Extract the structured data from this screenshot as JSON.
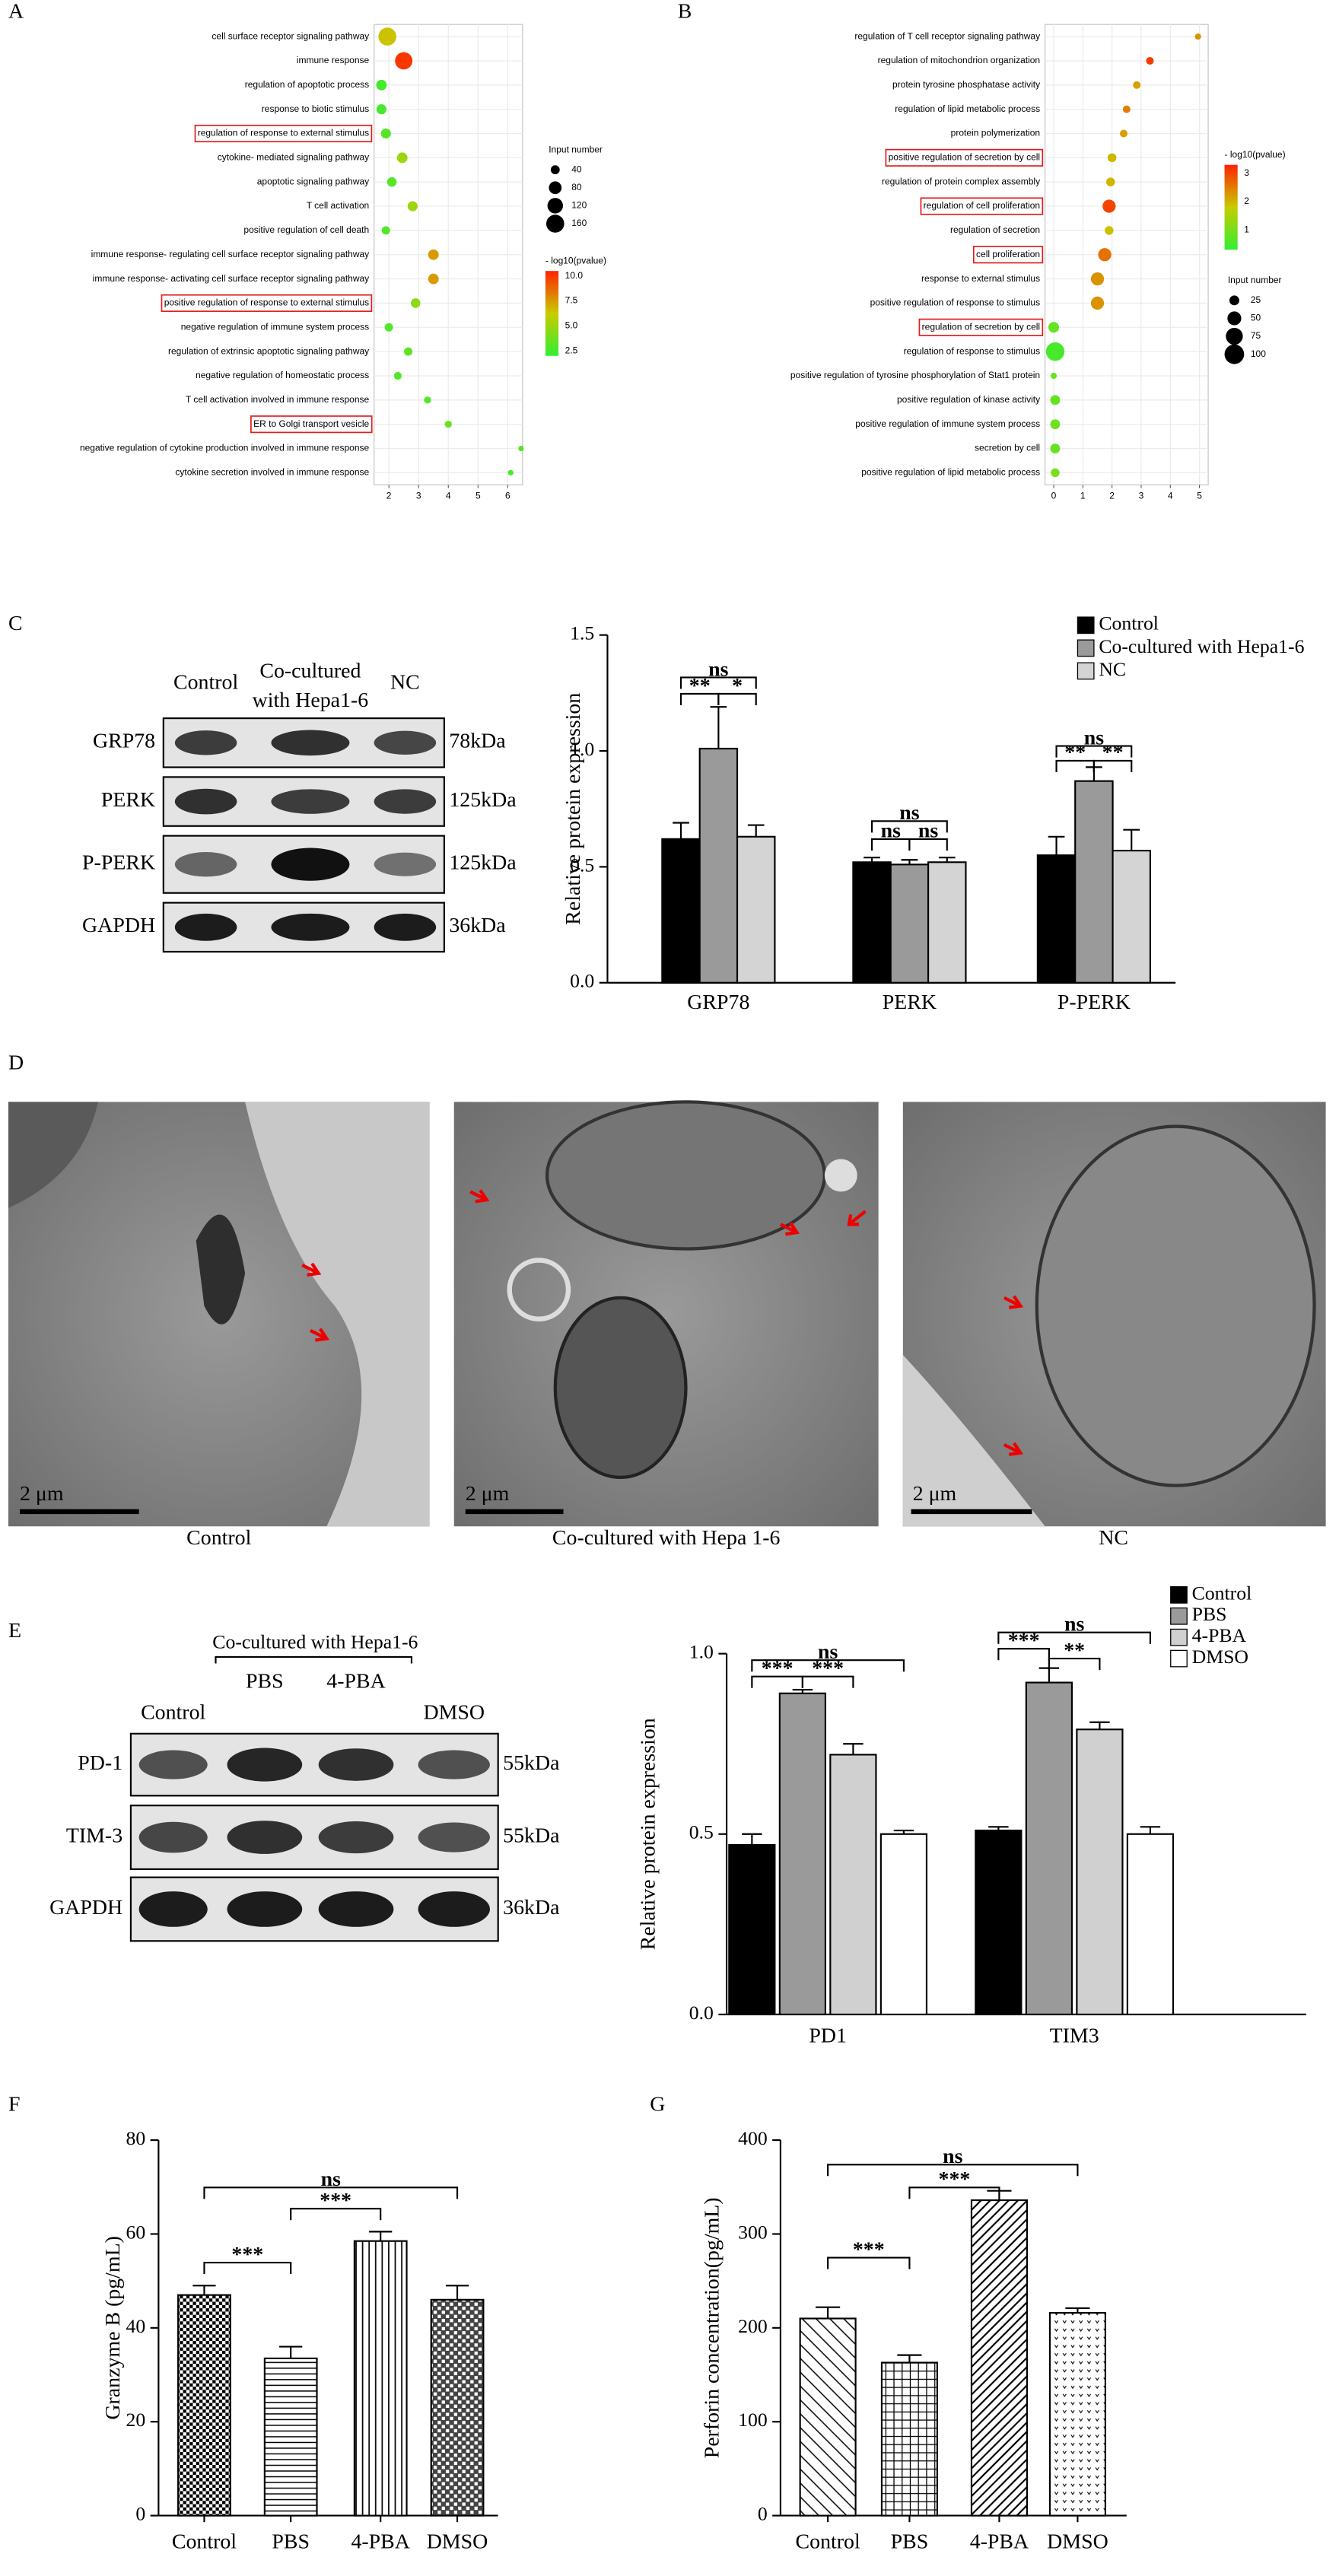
{
  "panels": [
    "A",
    "B",
    "C",
    "D",
    "E",
    "F",
    "G"
  ],
  "chart_data": [
    {
      "type": "bubble",
      "categories": [
        "cell surface receptor signaling pathway",
        "immune response",
        "regulation of apoptotic process",
        "response to biotic stimulus",
        "regulation of response to external stimulus",
        "cytokine- mediated signaling pathway",
        "apoptotic signaling pathway",
        "T cell activation",
        "positive regulation of cell death",
        "immune response- regulating cell surface receptor signaling pathway",
        "immune response- activating cell surface receptor signaling pathway",
        "positive regulation of response to external stimulus",
        "negative regulation of immune system process",
        "regulation of extrinsic apoptotic signaling pathway",
        "negative regulation of homeostatic process",
        "T cell activation involved in immune response",
        "ER to Golgi transport vesicle",
        "negative regulation of cytokine production involved in immune response",
        "cytokine secretion involved in immune response"
      ],
      "values": [
        1.95,
        2.5,
        1.75,
        1.75,
        1.9,
        2.45,
        2.1,
        2.8,
        1.9,
        3.5,
        3.5,
        2.9,
        2.0,
        2.65,
        2.3,
        3.3,
        4.0,
        6.45,
        6.1
      ],
      "sizes": [
        160,
        150,
        55,
        50,
        50,
        55,
        45,
        50,
        35,
        55,
        55,
        45,
        35,
        35,
        30,
        25,
        25,
        15,
        15
      ],
      "pvalues": [
        6.5,
        10,
        2.5,
        2.5,
        3,
        5,
        3,
        5,
        2.8,
        7.5,
        7.5,
        4.5,
        2.8,
        3.2,
        2.8,
        3,
        3.5,
        3,
        2.7
      ],
      "xlim": [
        1.5,
        6.5
      ],
      "xticks": [
        2,
        3,
        4,
        5,
        6
      ],
      "grid": true,
      "highlighted": [
        4,
        11,
        16
      ],
      "size_legend": {
        "title": "Input number",
        "values": [
          40,
          80,
          120,
          160
        ]
      },
      "color_legend": {
        "title": "- log10(pvalue)",
        "lim": [
          2,
          10.5
        ],
        "colors": [
          "#33ee33",
          "#c8cc00",
          "#ff2200"
        ],
        "ticks": [
          2.5,
          {
            "value": 5,
            "label": "5.0"
          },
          7.5,
          {
            "value": 10,
            "label": "10.0"
          }
        ]
      }
    },
    {
      "type": "bubble",
      "categories": [
        "regulation of T cell receptor signaling pathway",
        "regulation of mitochondrion organization",
        "protein tyrosine phosphatase activity",
        "regulation of lipid metabolic process",
        "protein polymerization",
        "positive regulation of secretion by cell",
        "regulation of protein complex assembly",
        "regulation of cell proliferation",
        "regulation of secretion",
        "cell proliferation",
        "response to external stimulus",
        "positive regulation of response to stimulus",
        "regulation of secretion by cell",
        "regulation of response to stimulus",
        "positive regulation of tyrosine phosphorylation of Stat1 protein",
        "positive regulation of kinase activity",
        "positive regulation of immune system process",
        "secretion by cell",
        "positive regulation of lipid metabolic process"
      ],
      "values": [
        4.95,
        3.3,
        2.85,
        2.5,
        2.4,
        2.0,
        1.95,
        1.9,
        1.9,
        1.75,
        1.5,
        1.5,
        0,
        0.05,
        0,
        0.05,
        0.05,
        0.05,
        0.05
      ],
      "sizes": [
        10,
        15,
        15,
        15,
        15,
        20,
        20,
        45,
        20,
        45,
        45,
        45,
        30,
        90,
        10,
        25,
        25,
        25,
        20
      ],
      "pvalues": [
        2.3,
        3.1,
        2.2,
        2.5,
        2.2,
        2.0,
        2.0,
        3.0,
        1.9,
        2.6,
        2.3,
        2.3,
        0.8,
        0.5,
        0.8,
        0.8,
        0.9,
        0.8,
        1.0
      ],
      "xlim": [
        -0.3,
        5.3
      ],
      "xticks": [
        0,
        1,
        2,
        3,
        4,
        5
      ],
      "grid": true,
      "highlighted": [
        5,
        7,
        9,
        12
      ],
      "size_legend": {
        "title": "Input number",
        "values": [
          25,
          50,
          75,
          100
        ]
      },
      "color_legend": {
        "title": "- log10(pvalue)",
        "lim": [
          0.3,
          3.3
        ],
        "colors": [
          "#33ee33",
          "#c8cc00",
          "#ff2200"
        ],
        "ticks": [
          1,
          2,
          3
        ]
      }
    },
    {
      "type": "bar",
      "y_label": "Relative protein expression",
      "categories": [
        "GRP78",
        "PERK",
        "P-PERK"
      ],
      "series": [
        {
          "name": "Control",
          "color": "#000000",
          "values": [
            0.62,
            0.52,
            0.55
          ],
          "errors": [
            0.07,
            0.02,
            0.08
          ]
        },
        {
          "name": "Co-cultured with Hepa1-6",
          "color": "#9a9a9a",
          "values": [
            1.01,
            0.51,
            0.87
          ],
          "errors": [
            0.18,
            0.02,
            0.06
          ]
        },
        {
          "name": "NC",
          "color": "#d4d4d4",
          "values": [
            0.63,
            0.52,
            0.57
          ],
          "errors": [
            0.05,
            0.02,
            0.09
          ]
        }
      ],
      "ylim": [
        0,
        1.5
      ],
      "yticks": [
        {
          "value": 0,
          "label": "0.0"
        },
        0.5,
        {
          "value": 1,
          "label": "1.0"
        },
        1.5
      ],
      "annotations": [
        "ns",
        "**",
        "*",
        "ns",
        "ns",
        "ns",
        "ns",
        "**",
        "**"
      ]
    },
    {
      "type": "bar",
      "y_label": "Relative protein expression",
      "categories": [
        "PD1",
        "TIM3"
      ],
      "series": [
        {
          "name": "Control",
          "color": "#000000",
          "values": [
            0.47,
            0.51
          ],
          "errors": [
            0.03,
            0.01
          ]
        },
        {
          "name": "PBS",
          "color": "#9a9a9a",
          "values": [
            0.89,
            0.92
          ],
          "errors": [
            0.01,
            0.04
          ]
        },
        {
          "name": "4-PBA",
          "color": "#d0d0d0",
          "values": [
            0.72,
            0.79
          ],
          "errors": [
            0.03,
            0.02
          ]
        },
        {
          "name": "DMSO",
          "color": "#ffffff",
          "values": [
            0.5,
            0.5
          ],
          "errors": [
            0.01,
            0.02
          ]
        }
      ],
      "ylim": [
        0,
        1
      ],
      "yticks": [
        {
          "value": 0,
          "label": "0.0"
        },
        0.5,
        {
          "value": 1,
          "label": "1.0"
        }
      ],
      "annotations": [
        "ns",
        "***",
        "***",
        "ns",
        "***",
        "**"
      ]
    },
    {
      "type": "bar",
      "y_label": "Granzyme B (pg/mL)",
      "categories": [
        "Control",
        "PBS",
        "4-PBA",
        "DMSO"
      ],
      "values": [
        47,
        33.5,
        58.5,
        46
      ],
      "errors": [
        2,
        2.5,
        2,
        3
      ],
      "color": "#000000",
      "patterns": [
        "checker",
        "hlines",
        "vlines",
        "checker-dark"
      ],
      "ylim": [
        0,
        80
      ],
      "yticks": [
        0,
        20,
        40,
        60,
        80
      ],
      "annotations": [
        "***",
        "***",
        "ns"
      ]
    },
    {
      "type": "bar",
      "y_label": "Perforin concentration(pg/mL)",
      "categories": [
        "Control",
        "PBS",
        "4-PBA",
        "DMSO"
      ],
      "values": [
        210,
        163,
        336,
        216
      ],
      "errors": [
        12,
        8,
        10,
        5
      ],
      "color": "#000000",
      "patterns": [
        "diagonal",
        "grid",
        "diagonal-dense",
        "dots"
      ],
      "ylim": [
        0,
        400
      ],
      "yticks": [
        0,
        100,
        200,
        300,
        400
      ],
      "annotations": [
        "***",
        "***",
        "ns"
      ]
    }
  ],
  "blots": [
    {
      "columns": [
        [
          "Control"
        ],
        [
          "Co-cultured",
          "with Hepa1-6"
        ],
        [
          "NC"
        ]
      ],
      "rows": [
        {
          "name": "GRP78",
          "size": "78kDa"
        },
        {
          "name": "PERK",
          "size": "125kDa"
        },
        {
          "name": "P-PERK",
          "size": "125kDa"
        },
        {
          "name": "GAPDH",
          "size": "36kDa"
        }
      ]
    },
    {
      "group_label": "Co-cultured with Hepa1-6",
      "columns": [
        [
          "Control"
        ],
        [
          "PBS"
        ],
        [
          "4-PBA"
        ],
        [
          "DMSO"
        ]
      ],
      "rows": [
        {
          "name": "PD-1",
          "size": "55kDa"
        },
        {
          "name": "TIM-3",
          "size": "55kDa"
        },
        {
          "name": "GAPDH",
          "size": "36kDa"
        }
      ]
    }
  ],
  "micrographs": {
    "scale_bar": "2 μm",
    "labels": [
      "Control",
      "Co-cultured with Hepa 1-6",
      "NC"
    ]
  }
}
